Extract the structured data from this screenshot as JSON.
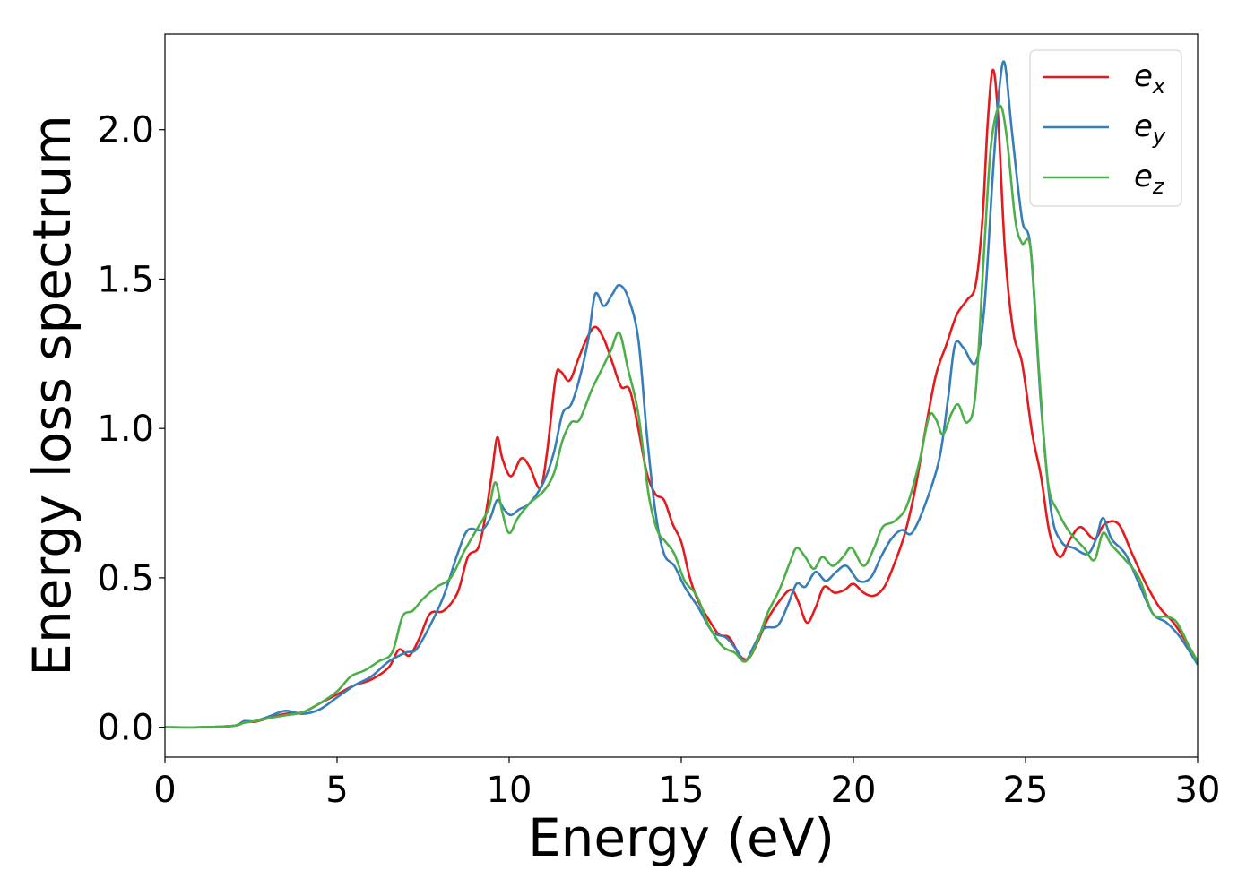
{
  "chart_data": {
    "type": "line",
    "title": "",
    "xlabel": "Energy (eV)",
    "ylabel": "Energy loss spectrum",
    "xlim": [
      0,
      30
    ],
    "ylim": [
      -0.1,
      2.32
    ],
    "xticks": [
      0,
      5,
      10,
      15,
      20,
      25,
      30
    ],
    "yticks": [
      0.0,
      0.5,
      1.0,
      1.5,
      2.0
    ],
    "xtick_labels": [
      "0",
      "5",
      "10",
      "15",
      "20",
      "25",
      "30"
    ],
    "ytick_labels": [
      "0.0",
      "0.5",
      "1.0",
      "1.5",
      "2.0"
    ],
    "grid": false,
    "legend_position": "top-right",
    "series": [
      {
        "name": "e_x",
        "base": "e",
        "sub": "x",
        "color": "#e41a1c",
        "points": [
          [
            0,
            0
          ],
          [
            1,
            0
          ],
          [
            2,
            0.005
          ],
          [
            2.3,
            0.02
          ],
          [
            2.6,
            0.018
          ],
          [
            3,
            0.03
          ],
          [
            3.5,
            0.045
          ],
          [
            4,
            0.05
          ],
          [
            4.5,
            0.08
          ],
          [
            5,
            0.11
          ],
          [
            5.5,
            0.14
          ],
          [
            6,
            0.16
          ],
          [
            6.5,
            0.2
          ],
          [
            6.8,
            0.26
          ],
          [
            7.1,
            0.24
          ],
          [
            7.4,
            0.3
          ],
          [
            7.7,
            0.38
          ],
          [
            8.1,
            0.39
          ],
          [
            8.5,
            0.45
          ],
          [
            8.8,
            0.57
          ],
          [
            9.1,
            0.6
          ],
          [
            9.3,
            0.7
          ],
          [
            9.5,
            0.85
          ],
          [
            9.65,
            0.97
          ],
          [
            9.8,
            0.9
          ],
          [
            10.05,
            0.84
          ],
          [
            10.35,
            0.9
          ],
          [
            10.6,
            0.87
          ],
          [
            10.9,
            0.8
          ],
          [
            11.1,
            0.92
          ],
          [
            11.35,
            1.17
          ],
          [
            11.5,
            1.19
          ],
          [
            11.75,
            1.16
          ],
          [
            12,
            1.23
          ],
          [
            12.25,
            1.3
          ],
          [
            12.5,
            1.34
          ],
          [
            12.75,
            1.3
          ],
          [
            13,
            1.22
          ],
          [
            13.25,
            1.14
          ],
          [
            13.5,
            1.13
          ],
          [
            13.75,
            1.0
          ],
          [
            14,
            0.85
          ],
          [
            14.25,
            0.78
          ],
          [
            14.5,
            0.76
          ],
          [
            14.75,
            0.68
          ],
          [
            15,
            0.62
          ],
          [
            15.25,
            0.5
          ],
          [
            15.5,
            0.42
          ],
          [
            15.8,
            0.36
          ],
          [
            16.1,
            0.31
          ],
          [
            16.4,
            0.3
          ],
          [
            16.7,
            0.24
          ],
          [
            16.95,
            0.23
          ],
          [
            17.2,
            0.28
          ],
          [
            17.5,
            0.36
          ],
          [
            17.9,
            0.43
          ],
          [
            18.2,
            0.46
          ],
          [
            18.4,
            0.42
          ],
          [
            18.65,
            0.35
          ],
          [
            18.9,
            0.4
          ],
          [
            19.15,
            0.47
          ],
          [
            19.45,
            0.45
          ],
          [
            19.75,
            0.46
          ],
          [
            20.0,
            0.48
          ],
          [
            20.3,
            0.45
          ],
          [
            20.6,
            0.44
          ],
          [
            20.9,
            0.47
          ],
          [
            21.2,
            0.55
          ],
          [
            21.5,
            0.65
          ],
          [
            21.8,
            0.8
          ],
          [
            22.1,
            1.0
          ],
          [
            22.4,
            1.18
          ],
          [
            22.7,
            1.28
          ],
          [
            23.0,
            1.38
          ],
          [
            23.3,
            1.43
          ],
          [
            23.55,
            1.48
          ],
          [
            23.75,
            1.7
          ],
          [
            23.9,
            2.02
          ],
          [
            24.05,
            2.2
          ],
          [
            24.2,
            2.05
          ],
          [
            24.4,
            1.6
          ],
          [
            24.65,
            1.32
          ],
          [
            24.9,
            1.22
          ],
          [
            25.2,
            0.98
          ],
          [
            25.45,
            0.84
          ],
          [
            25.7,
            0.65
          ],
          [
            26.0,
            0.57
          ],
          [
            26.3,
            0.63
          ],
          [
            26.6,
            0.67
          ],
          [
            27.0,
            0.63
          ],
          [
            27.3,
            0.68
          ],
          [
            27.7,
            0.68
          ],
          [
            28.1,
            0.58
          ],
          [
            28.5,
            0.48
          ],
          [
            28.9,
            0.4
          ],
          [
            29.3,
            0.35
          ],
          [
            29.7,
            0.28
          ],
          [
            30,
            0.22
          ]
        ]
      },
      {
        "name": "e_y",
        "base": "e",
        "sub": "y",
        "color": "#377eb8",
        "points": [
          [
            0,
            0
          ],
          [
            1,
            0
          ],
          [
            2,
            0.005
          ],
          [
            2.3,
            0.02
          ],
          [
            2.6,
            0.02
          ],
          [
            3,
            0.035
          ],
          [
            3.5,
            0.055
          ],
          [
            4,
            0.045
          ],
          [
            4.5,
            0.06
          ],
          [
            5,
            0.1
          ],
          [
            5.5,
            0.14
          ],
          [
            6,
            0.17
          ],
          [
            6.5,
            0.22
          ],
          [
            7,
            0.25
          ],
          [
            7.3,
            0.26
          ],
          [
            7.7,
            0.34
          ],
          [
            8.1,
            0.44
          ],
          [
            8.5,
            0.58
          ],
          [
            8.8,
            0.66
          ],
          [
            9.2,
            0.66
          ],
          [
            9.45,
            0.7
          ],
          [
            9.65,
            0.76
          ],
          [
            9.85,
            0.73
          ],
          [
            10.05,
            0.71
          ],
          [
            10.3,
            0.73
          ],
          [
            10.6,
            0.75
          ],
          [
            11,
            0.82
          ],
          [
            11.3,
            0.92
          ],
          [
            11.55,
            1.05
          ],
          [
            11.8,
            1.08
          ],
          [
            12.05,
            1.17
          ],
          [
            12.3,
            1.3
          ],
          [
            12.5,
            1.45
          ],
          [
            12.75,
            1.41
          ],
          [
            13,
            1.45
          ],
          [
            13.2,
            1.48
          ],
          [
            13.45,
            1.44
          ],
          [
            13.75,
            1.3
          ],
          [
            14,
            0.98
          ],
          [
            14.25,
            0.72
          ],
          [
            14.5,
            0.58
          ],
          [
            14.8,
            0.54
          ],
          [
            15.1,
            0.47
          ],
          [
            15.5,
            0.4
          ],
          [
            15.9,
            0.32
          ],
          [
            16.3,
            0.3
          ],
          [
            16.6,
            0.26
          ],
          [
            16.85,
            0.22
          ],
          [
            17.1,
            0.27
          ],
          [
            17.4,
            0.33
          ],
          [
            17.8,
            0.34
          ],
          [
            18.1,
            0.41
          ],
          [
            18.35,
            0.48
          ],
          [
            18.6,
            0.47
          ],
          [
            18.9,
            0.52
          ],
          [
            19.2,
            0.49
          ],
          [
            19.5,
            0.52
          ],
          [
            19.8,
            0.54
          ],
          [
            20.15,
            0.49
          ],
          [
            20.5,
            0.5
          ],
          [
            20.8,
            0.57
          ],
          [
            21.1,
            0.63
          ],
          [
            21.4,
            0.66
          ],
          [
            21.7,
            0.65
          ],
          [
            22.1,
            0.75
          ],
          [
            22.5,
            0.9
          ],
          [
            22.75,
            1.1
          ],
          [
            22.95,
            1.28
          ],
          [
            23.2,
            1.27
          ],
          [
            23.55,
            1.22
          ],
          [
            23.8,
            1.4
          ],
          [
            24.05,
            1.85
          ],
          [
            24.25,
            2.15
          ],
          [
            24.4,
            2.22
          ],
          [
            24.6,
            2.0
          ],
          [
            24.9,
            1.7
          ],
          [
            25.15,
            1.6
          ],
          [
            25.45,
            1.08
          ],
          [
            25.75,
            0.72
          ],
          [
            26.05,
            0.62
          ],
          [
            26.4,
            0.6
          ],
          [
            26.8,
            0.58
          ],
          [
            27.05,
            0.63
          ],
          [
            27.25,
            0.7
          ],
          [
            27.5,
            0.63
          ],
          [
            27.9,
            0.58
          ],
          [
            28.3,
            0.48
          ],
          [
            28.7,
            0.38
          ],
          [
            29.1,
            0.35
          ],
          [
            29.5,
            0.3
          ],
          [
            30,
            0.21
          ]
        ]
      },
      {
        "name": "e_z",
        "base": "e",
        "sub": "z",
        "color": "#4daf4a",
        "points": [
          [
            0,
            0
          ],
          [
            1,
            0
          ],
          [
            2,
            0.005
          ],
          [
            2.3,
            0.015
          ],
          [
            2.6,
            0.02
          ],
          [
            3,
            0.03
          ],
          [
            3.5,
            0.04
          ],
          [
            4,
            0.05
          ],
          [
            4.5,
            0.08
          ],
          [
            5,
            0.12
          ],
          [
            5.4,
            0.17
          ],
          [
            5.8,
            0.19
          ],
          [
            6.2,
            0.22
          ],
          [
            6.6,
            0.25
          ],
          [
            6.9,
            0.37
          ],
          [
            7.2,
            0.39
          ],
          [
            7.5,
            0.43
          ],
          [
            7.9,
            0.47
          ],
          [
            8.3,
            0.5
          ],
          [
            8.7,
            0.59
          ],
          [
            9.1,
            0.67
          ],
          [
            9.4,
            0.73
          ],
          [
            9.6,
            0.82
          ],
          [
            9.8,
            0.72
          ],
          [
            10.0,
            0.65
          ],
          [
            10.25,
            0.7
          ],
          [
            10.6,
            0.75
          ],
          [
            11,
            0.79
          ],
          [
            11.3,
            0.85
          ],
          [
            11.55,
            0.96
          ],
          [
            11.8,
            1.02
          ],
          [
            12.05,
            1.03
          ],
          [
            12.4,
            1.13
          ],
          [
            12.7,
            1.2
          ],
          [
            12.95,
            1.26
          ],
          [
            13.2,
            1.32
          ],
          [
            13.45,
            1.2
          ],
          [
            13.75,
            1.05
          ],
          [
            14.05,
            0.78
          ],
          [
            14.3,
            0.66
          ],
          [
            14.55,
            0.62
          ],
          [
            14.8,
            0.58
          ],
          [
            15.1,
            0.49
          ],
          [
            15.45,
            0.44
          ],
          [
            15.8,
            0.34
          ],
          [
            16.2,
            0.27
          ],
          [
            16.55,
            0.25
          ],
          [
            16.85,
            0.22
          ],
          [
            17.15,
            0.27
          ],
          [
            17.5,
            0.38
          ],
          [
            17.85,
            0.46
          ],
          [
            18.15,
            0.55
          ],
          [
            18.35,
            0.6
          ],
          [
            18.6,
            0.57
          ],
          [
            18.85,
            0.53
          ],
          [
            19.1,
            0.57
          ],
          [
            19.4,
            0.54
          ],
          [
            19.7,
            0.57
          ],
          [
            19.95,
            0.6
          ],
          [
            20.3,
            0.54
          ],
          [
            20.6,
            0.6
          ],
          [
            20.85,
            0.67
          ],
          [
            21.2,
            0.69
          ],
          [
            21.55,
            0.74
          ],
          [
            21.9,
            0.88
          ],
          [
            22.2,
            1.04
          ],
          [
            22.4,
            1.03
          ],
          [
            22.6,
            0.98
          ],
          [
            22.85,
            1.05
          ],
          [
            23.05,
            1.08
          ],
          [
            23.3,
            1.02
          ],
          [
            23.55,
            1.12
          ],
          [
            23.8,
            1.6
          ],
          [
            24.0,
            1.95
          ],
          [
            24.25,
            2.08
          ],
          [
            24.45,
            1.98
          ],
          [
            24.7,
            1.7
          ],
          [
            24.9,
            1.62
          ],
          [
            25.15,
            1.6
          ],
          [
            25.4,
            1.18
          ],
          [
            25.65,
            0.82
          ],
          [
            25.95,
            0.72
          ],
          [
            26.3,
            0.65
          ],
          [
            26.7,
            0.6
          ],
          [
            27.0,
            0.56
          ],
          [
            27.25,
            0.65
          ],
          [
            27.5,
            0.61
          ],
          [
            27.9,
            0.56
          ],
          [
            28.3,
            0.5
          ],
          [
            28.7,
            0.38
          ],
          [
            29.1,
            0.37
          ],
          [
            29.4,
            0.35
          ],
          [
            29.8,
            0.26
          ],
          [
            30,
            0.22
          ]
        ]
      }
    ]
  }
}
